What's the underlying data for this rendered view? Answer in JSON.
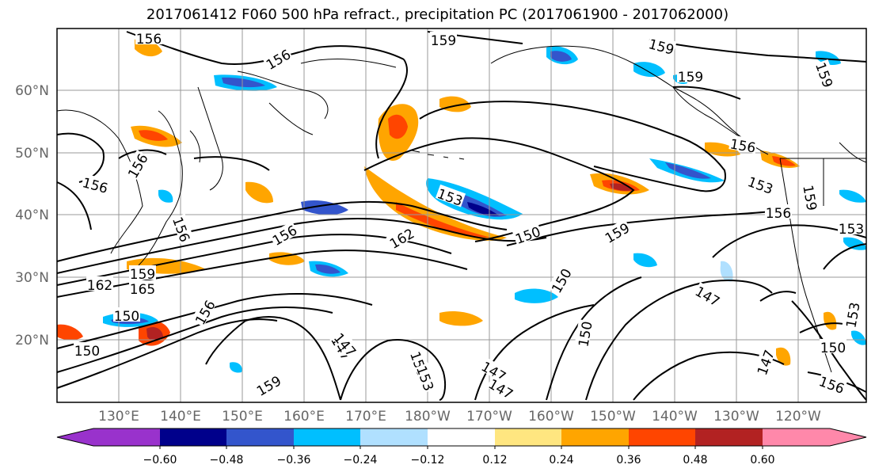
{
  "title": "2017061412 F060 500 hPa refract., precipitation PC (2017061900 - 2017062000)",
  "lat_labels": [
    "60°N",
    "50°N",
    "40°N",
    "30°N",
    "20°N"
  ],
  "lon_labels": [
    "130°E",
    "140°E",
    "150°E",
    "160°E",
    "170°E",
    "180°W",
    "170°W",
    "160°W",
    "150°W",
    "140°W",
    "130°W",
    "120°W"
  ],
  "colorbar": {
    "ticks": [
      "−0.60",
      "−0.48",
      "−0.36",
      "−0.24",
      "−0.12",
      "0.12",
      "0.24",
      "0.36",
      "0.48",
      "0.60"
    ],
    "colors": [
      "#9932cc",
      "#00008b",
      "#3355cc",
      "#00bfff",
      "#b0e0ff",
      "#ffffff",
      "#ffe680",
      "#ffa500",
      "#ff4500",
      "#b22222",
      "#ff88aa"
    ]
  },
  "contour_labels": [
    "156",
    "159",
    "156",
    "159",
    "159",
    "156",
    "156",
    "156",
    "153",
    "153",
    "156",
    "159",
    "159",
    "156",
    "150",
    "162",
    "153",
    "162",
    "165",
    "159",
    "150",
    "156",
    "159",
    "147",
    "147",
    "150",
    "147",
    "150",
    "153",
    "150",
    "147",
    "150",
    "153",
    "156",
    "156",
    "150",
    "159",
    "147",
    "147"
  ],
  "colors": {
    "contour": "#000000",
    "grid": "#999999",
    "coast": "#000000"
  }
}
